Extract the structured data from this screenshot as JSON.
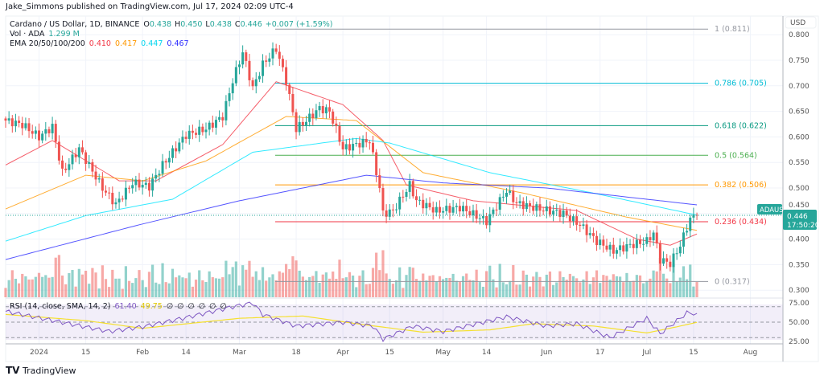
{
  "header": {
    "published": "Jake_Simmons published on TradingView.com, Jul 17, 2024 02:09 UTC-4"
  },
  "legend": {
    "symbol": "Cardano / US Dollar, 1D, BINANCE",
    "o_label": "O",
    "o": "0.438",
    "h_label": "H",
    "h": "0.450",
    "l_label": "L",
    "l": "0.438",
    "c_label": "C",
    "c": "0.446",
    "change": "+0.007 (+1.59%)",
    "vol_label": "Vol · ADA",
    "vol": "1.299 M",
    "ema_label": "EMA 20/50/100/200",
    "ema20": "0.410",
    "ema50": "0.417",
    "ema100": "0.447",
    "ema200": "0.467",
    "rsi_label": "RSI (14, close, SMA, 14, 2)",
    "rsi": "61.40",
    "rsi_sma": "49.75",
    "rsi_na": [
      "∅",
      "∅",
      "∅",
      "∅",
      "∅",
      "∅"
    ]
  },
  "colors": {
    "up": "#26a69a",
    "down": "#ef5350",
    "ema20": "#f23645",
    "ema50": "#ff9800",
    "ema100": "#00e5ff",
    "ema200": "#2b2bff",
    "rsi": "#7e57c2",
    "rsi_sma": "#f5e030"
  },
  "price_axis": {
    "currency": "USD",
    "ticks": [
      "0.300",
      "0.350",
      "0.400",
      "0.450",
      "0.500",
      "0.550",
      "0.600",
      "0.650",
      "0.700",
      "0.750",
      "0.800"
    ]
  },
  "rsi_axis": {
    "ticks": [
      "25.00",
      "50.00",
      "75.00"
    ]
  },
  "last_price": {
    "symbol_tag": "ADAUSD",
    "price": "0.446",
    "countdown": "17:50:20"
  },
  "fib_levels": [
    {
      "label": "1 (0.811)",
      "price": 0.811,
      "color": "#9598a1"
    },
    {
      "label": "0.786 (0.705)",
      "price": 0.705,
      "color": "#00bcd4"
    },
    {
      "label": "0.618 (0.622)",
      "price": 0.622,
      "color": "#089981"
    },
    {
      "label": "0.5 (0.564)",
      "price": 0.564,
      "color": "#4caf50"
    },
    {
      "label": "0.382 (0.506)",
      "price": 0.506,
      "color": "#ff9800"
    },
    {
      "label": "0.236 (0.434)",
      "price": 0.434,
      "color": "#f23645"
    },
    {
      "label": "0 (0.317)",
      "price": 0.317,
      "color": "#9598a1"
    }
  ],
  "footer": {
    "brand": "TradingView"
  },
  "chart_data": {
    "type": "candlestick",
    "title": "Cardano / US Dollar, 1D, BINANCE",
    "ylim": [
      0.29,
      0.82
    ],
    "time_ticks": [
      {
        "label": "2024",
        "date": "2024-01-01"
      },
      {
        "label": "15",
        "date": "2024-01-15"
      },
      {
        "label": "Feb",
        "date": "2024-02-01"
      },
      {
        "label": "14",
        "date": "2024-02-14"
      },
      {
        "label": "Mar",
        "date": "2024-03-01"
      },
      {
        "label": "18",
        "date": "2024-03-18"
      },
      {
        "label": "Apr",
        "date": "2024-04-01"
      },
      {
        "label": "15",
        "date": "2024-04-15"
      },
      {
        "label": "May",
        "date": "2024-05-01"
      },
      {
        "label": "14",
        "date": "2024-05-14"
      },
      {
        "label": "Jun",
        "date": "2024-06-01"
      },
      {
        "label": "17",
        "date": "2024-06-17"
      },
      {
        "label": "Jul",
        "date": "2024-07-01"
      },
      {
        "label": "15",
        "date": "2024-07-15"
      },
      {
        "label": "Aug",
        "date": "2024-08-01"
      }
    ],
    "close_anchors": [
      [
        "2023-12-22",
        0.632
      ],
      [
        "2023-12-27",
        0.624
      ],
      [
        "2024-01-01",
        0.6
      ],
      [
        "2024-01-05",
        0.62
      ],
      [
        "2024-01-08",
        0.53
      ],
      [
        "2024-01-13",
        0.577
      ],
      [
        "2024-01-20",
        0.5
      ],
      [
        "2024-01-24",
        0.468
      ],
      [
        "2024-01-29",
        0.51
      ],
      [
        "2024-02-03",
        0.503
      ],
      [
        "2024-02-07",
        0.545
      ],
      [
        "2024-02-14",
        0.604
      ],
      [
        "2024-02-20",
        0.616
      ],
      [
        "2024-02-25",
        0.64
      ],
      [
        "2024-02-28",
        0.71
      ],
      [
        "2024-03-02",
        0.766
      ],
      [
        "2024-03-05",
        0.695
      ],
      [
        "2024-03-08",
        0.742
      ],
      [
        "2024-03-12",
        0.773
      ],
      [
        "2024-03-15",
        0.71
      ],
      [
        "2024-03-18",
        0.616
      ],
      [
        "2024-03-21",
        0.632
      ],
      [
        "2024-03-25",
        0.656
      ],
      [
        "2024-03-28",
        0.65
      ],
      [
        "2024-04-01",
        0.577
      ],
      [
        "2024-04-05",
        0.585
      ],
      [
        "2024-04-09",
        0.593
      ],
      [
        "2024-04-12",
        0.5
      ],
      [
        "2024-04-13",
        0.45
      ],
      [
        "2024-04-16",
        0.455
      ],
      [
        "2024-04-21",
        0.506
      ],
      [
        "2024-04-23",
        0.475
      ],
      [
        "2024-04-29",
        0.455
      ],
      [
        "2024-05-06",
        0.462
      ],
      [
        "2024-05-14",
        0.435
      ],
      [
        "2024-05-20",
        0.495
      ],
      [
        "2024-05-23",
        0.47
      ],
      [
        "2024-05-30",
        0.459
      ],
      [
        "2024-06-06",
        0.45
      ],
      [
        "2024-06-11",
        0.428
      ],
      [
        "2024-06-16",
        0.396
      ],
      [
        "2024-06-21",
        0.377
      ],
      [
        "2024-06-26",
        0.388
      ],
      [
        "2024-07-01",
        0.396
      ],
      [
        "2024-07-03",
        0.412
      ],
      [
        "2024-07-05",
        0.36
      ],
      [
        "2024-07-08",
        0.352
      ],
      [
        "2024-07-11",
        0.388
      ],
      [
        "2024-07-13",
        0.423
      ],
      [
        "2024-07-14",
        0.44
      ],
      [
        "2024-07-16",
        0.446
      ]
    ],
    "ema_series": [
      {
        "name": "EMA 20",
        "color": "#f23645",
        "points": [
          [
            "2023-12-22",
            0.545
          ],
          [
            "2024-01-05",
            0.593
          ],
          [
            "2024-01-25",
            0.514
          ],
          [
            "2024-02-05",
            0.514
          ],
          [
            "2024-02-25",
            0.585
          ],
          [
            "2024-03-12",
            0.708
          ],
          [
            "2024-04-01",
            0.663
          ],
          [
            "2024-04-13",
            0.593
          ],
          [
            "2024-04-20",
            0.506
          ],
          [
            "2024-05-10",
            0.475
          ],
          [
            "2024-06-10",
            0.456
          ],
          [
            "2024-06-28",
            0.4
          ],
          [
            "2024-07-08",
            0.388
          ],
          [
            "2024-07-16",
            0.41
          ]
        ]
      },
      {
        "name": "EMA 50",
        "color": "#ff9800",
        "points": [
          [
            "2023-12-22",
            0.459
          ],
          [
            "2024-01-15",
            0.525
          ],
          [
            "2024-02-01",
            0.514
          ],
          [
            "2024-02-20",
            0.553
          ],
          [
            "2024-03-15",
            0.64
          ],
          [
            "2024-04-05",
            0.632
          ],
          [
            "2024-04-25",
            0.53
          ],
          [
            "2024-05-25",
            0.49
          ],
          [
            "2024-06-25",
            0.443
          ],
          [
            "2024-07-16",
            0.417
          ]
        ]
      },
      {
        "name": "EMA 100",
        "color": "#00e5ff",
        "points": [
          [
            "2023-12-22",
            0.396
          ],
          [
            "2024-01-15",
            0.446
          ],
          [
            "2024-02-10",
            0.478
          ],
          [
            "2024-03-05",
            0.57
          ],
          [
            "2024-04-05",
            0.597
          ],
          [
            "2024-04-15",
            0.588
          ],
          [
            "2024-05-15",
            0.53
          ],
          [
            "2024-06-15",
            0.49
          ],
          [
            "2024-07-16",
            0.447
          ]
        ]
      },
      {
        "name": "EMA 200",
        "color": "#2b2bff",
        "points": [
          [
            "2023-12-22",
            0.36
          ],
          [
            "2024-01-31",
            0.428
          ],
          [
            "2024-03-01",
            0.475
          ],
          [
            "2024-04-08",
            0.525
          ],
          [
            "2024-05-01",
            0.51
          ],
          [
            "2024-06-01",
            0.5
          ],
          [
            "2024-07-16",
            0.467
          ]
        ]
      }
    ],
    "rsi": {
      "ylim": [
        20,
        80
      ],
      "bands": [
        30,
        50,
        70
      ],
      "rsi_points": [
        [
          "2023-12-22",
          64
        ],
        [
          "2024-01-10",
          48
        ],
        [
          "2024-01-22",
          38
        ],
        [
          "2024-02-01",
          44
        ],
        [
          "2024-02-14",
          56
        ],
        [
          "2024-02-28",
          70
        ],
        [
          "2024-03-05",
          75
        ],
        [
          "2024-03-08",
          60
        ],
        [
          "2024-03-18",
          45
        ],
        [
          "2024-04-01",
          50
        ],
        [
          "2024-04-10",
          45
        ],
        [
          "2024-04-13",
          28
        ],
        [
          "2024-04-22",
          45
        ],
        [
          "2024-05-01",
          38
        ],
        [
          "2024-05-20",
          57
        ],
        [
          "2024-06-01",
          45
        ],
        [
          "2024-06-10",
          48
        ],
        [
          "2024-06-20",
          30
        ],
        [
          "2024-07-01",
          55
        ],
        [
          "2024-07-05",
          35
        ],
        [
          "2024-07-13",
          62
        ],
        [
          "2024-07-16",
          61.4
        ]
      ],
      "sma_points": [
        [
          "2023-12-22",
          60
        ],
        [
          "2024-01-15",
          52
        ],
        [
          "2024-02-01",
          42
        ],
        [
          "2024-03-01",
          55
        ],
        [
          "2024-03-20",
          58
        ],
        [
          "2024-04-05",
          48
        ],
        [
          "2024-04-25",
          37
        ],
        [
          "2024-05-15",
          40
        ],
        [
          "2024-05-28",
          48
        ],
        [
          "2024-06-15",
          45
        ],
        [
          "2024-07-01",
          36
        ],
        [
          "2024-07-10",
          44
        ],
        [
          "2024-07-16",
          49.75
        ]
      ]
    }
  }
}
